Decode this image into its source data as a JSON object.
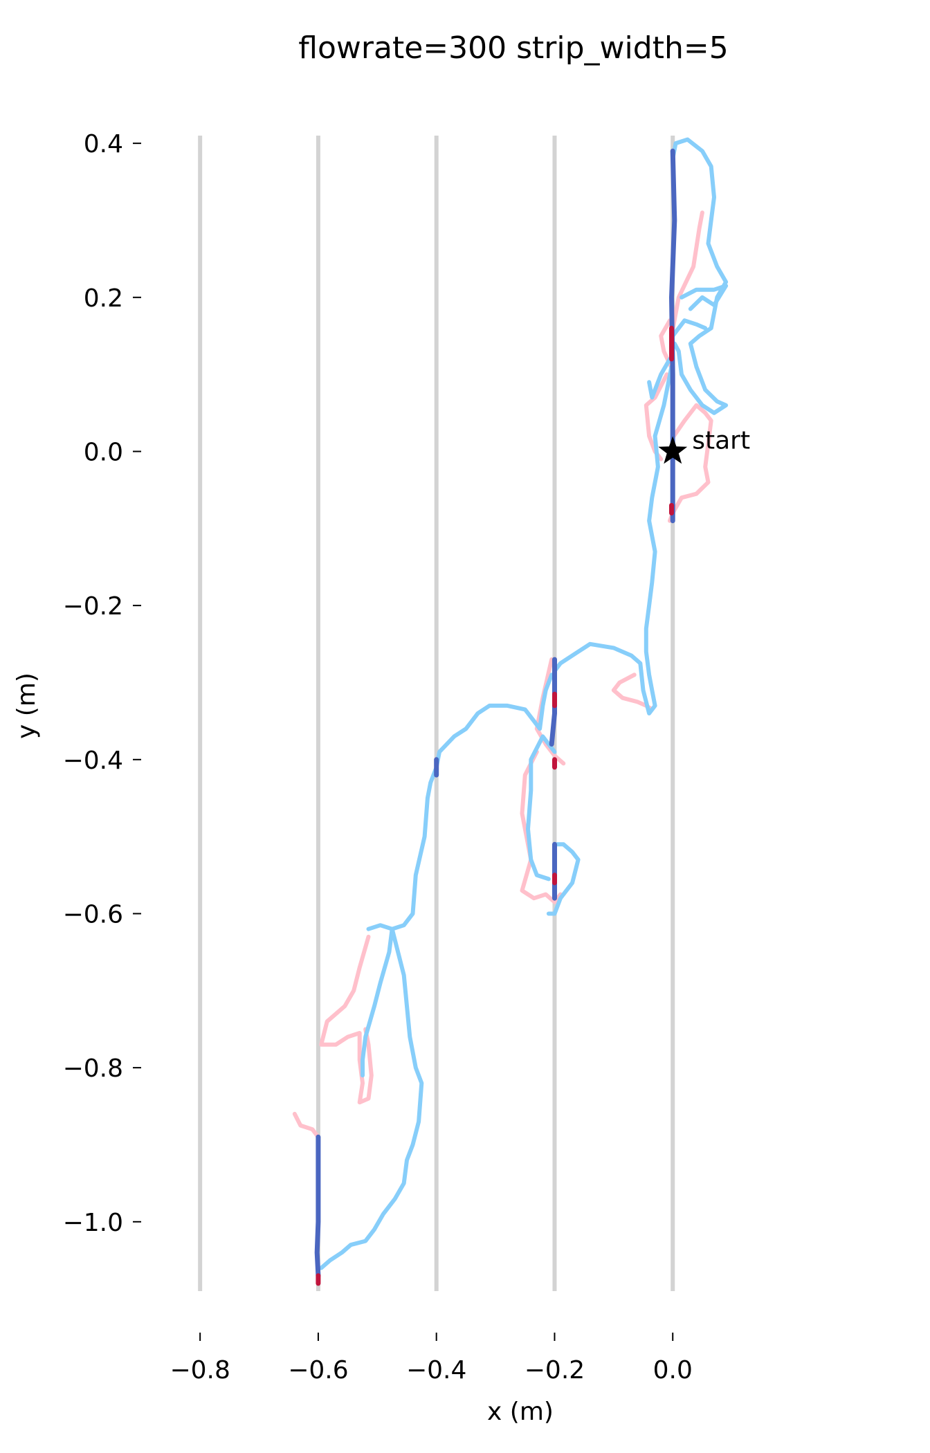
{
  "chart_data": {
    "type": "line",
    "title": "flowrate=300 strip_width=5",
    "xlabel": "x (m)",
    "ylabel": "y (m)",
    "xlim": [
      -0.84,
      0.2
    ],
    "ylim": [
      -1.09,
      0.41
    ],
    "xticks": [
      -0.8,
      -0.6,
      -0.4,
      -0.2,
      0.0
    ],
    "yticks": [
      0.4,
      0.2,
      0.0,
      -0.2,
      -0.4,
      -0.6,
      -0.8,
      -1.0
    ],
    "tick_labels_x": [
      "−0.8",
      "−0.6",
      "−0.4",
      "−0.2",
      "0.0"
    ],
    "tick_labels_y": [
      "0.4",
      "0.2",
      "0.0",
      "−0.2",
      "−0.4",
      "−0.6",
      "−0.8",
      "−1.0"
    ],
    "grid": false,
    "strips": [
      -0.8,
      -0.6,
      -0.4,
      -0.2,
      0.0
    ],
    "colors": {
      "strip": "#d3d3d3",
      "off_strip_upwind": "#87cefa",
      "off_strip_other": "#ffc0cb",
      "on_strip_upwind": "#4a66c0",
      "on_strip_other": "#c0143c"
    },
    "annotations": [
      {
        "text": "start",
        "x": 0.0,
        "y": 0.0,
        "marker": "star"
      }
    ],
    "series": [
      {
        "color_key": "off_strip_other",
        "points": [
          [
            -0.002,
            0.15
          ],
          [
            0.01,
            0.2
          ],
          [
            0.035,
            0.24
          ],
          [
            0.045,
            0.29
          ],
          [
            0.05,
            0.31
          ]
        ]
      },
      {
        "color_key": "off_strip_other",
        "points": [
          [
            0.002,
            0.02
          ],
          [
            0.02,
            0.04
          ],
          [
            0.04,
            0.06
          ],
          [
            0.055,
            0.05
          ],
          [
            0.065,
            0.04
          ],
          [
            0.06,
            0.01
          ],
          [
            0.055,
            -0.02
          ],
          [
            0.06,
            -0.04
          ],
          [
            0.04,
            -0.055
          ],
          [
            0.015,
            -0.06
          ],
          [
            0.0,
            -0.08
          ],
          [
            -0.005,
            -0.09
          ]
        ]
      },
      {
        "color_key": "off_strip_other",
        "points": [
          [
            -0.005,
            0.17
          ],
          [
            -0.02,
            0.15
          ],
          [
            -0.015,
            0.13
          ],
          [
            -0.003,
            0.11
          ]
        ]
      },
      {
        "color_key": "off_strip_other",
        "points": [
          [
            -0.01,
            0.1
          ],
          [
            -0.03,
            0.07
          ],
          [
            -0.045,
            0.06
          ],
          [
            -0.04,
            0.02
          ],
          [
            -0.03,
            0.0
          ],
          [
            -0.02,
            -0.01
          ]
        ]
      },
      {
        "color_key": "off_strip_other",
        "points": [
          [
            -0.205,
            -0.27
          ],
          [
            -0.22,
            -0.32
          ],
          [
            -0.23,
            -0.36
          ],
          [
            -0.215,
            -0.38
          ],
          [
            -0.2,
            -0.395
          ],
          [
            -0.185,
            -0.405
          ]
        ]
      },
      {
        "color_key": "off_strip_other",
        "points": [
          [
            -0.23,
            -0.39
          ],
          [
            -0.25,
            -0.42
          ],
          [
            -0.255,
            -0.47
          ],
          [
            -0.24,
            -0.53
          ],
          [
            -0.255,
            -0.57
          ],
          [
            -0.235,
            -0.58
          ],
          [
            -0.215,
            -0.575
          ],
          [
            -0.2,
            -0.585
          ],
          [
            -0.19,
            -0.575
          ]
        ]
      },
      {
        "color_key": "off_strip_other",
        "points": [
          [
            -0.065,
            -0.29
          ],
          [
            -0.09,
            -0.3
          ],
          [
            -0.1,
            -0.31
          ],
          [
            -0.085,
            -0.32
          ],
          [
            -0.06,
            -0.325
          ],
          [
            -0.045,
            -0.33
          ],
          [
            -0.035,
            -0.335
          ]
        ]
      },
      {
        "color_key": "off_strip_other",
        "points": [
          [
            -0.515,
            -0.63
          ],
          [
            -0.53,
            -0.67
          ],
          [
            -0.54,
            -0.7
          ],
          [
            -0.555,
            -0.72
          ],
          [
            -0.585,
            -0.74
          ],
          [
            -0.595,
            -0.77
          ],
          [
            -0.57,
            -0.77
          ],
          [
            -0.55,
            -0.76
          ],
          [
            -0.53,
            -0.755
          ],
          [
            -0.53,
            -0.79
          ],
          [
            -0.525,
            -0.82
          ],
          [
            -0.53,
            -0.845
          ],
          [
            -0.515,
            -0.84
          ],
          [
            -0.51,
            -0.81
          ],
          [
            -0.515,
            -0.77
          ],
          [
            -0.52,
            -0.75
          ]
        ]
      },
      {
        "color_key": "off_strip_other",
        "points": [
          [
            -0.6,
            -0.89
          ],
          [
            -0.61,
            -0.88
          ],
          [
            -0.63,
            -0.875
          ],
          [
            -0.64,
            -0.86
          ]
        ]
      },
      {
        "color_key": "off_strip_upwind",
        "points": [
          [
            0.0,
            0.38
          ],
          [
            0.005,
            0.4
          ],
          [
            0.025,
            0.405
          ],
          [
            0.05,
            0.39
          ],
          [
            0.065,
            0.37
          ],
          [
            0.07,
            0.33
          ],
          [
            0.065,
            0.3
          ],
          [
            0.06,
            0.27
          ],
          [
            0.075,
            0.24
          ],
          [
            0.09,
            0.22
          ],
          [
            0.075,
            0.2
          ],
          [
            0.065,
            0.16
          ],
          [
            0.045,
            0.15
          ],
          [
            0.03,
            0.14
          ],
          [
            0.04,
            0.11
          ],
          [
            0.055,
            0.08
          ],
          [
            0.075,
            0.065
          ],
          [
            0.09,
            0.06
          ],
          [
            0.07,
            0.05
          ],
          [
            0.05,
            0.06
          ],
          [
            0.03,
            0.08
          ],
          [
            0.015,
            0.1
          ],
          [
            0.01,
            0.13
          ],
          [
            0.003,
            0.14
          ]
        ]
      },
      {
        "color_key": "off_strip_upwind",
        "points": [
          [
            0.015,
            0.2
          ],
          [
            0.04,
            0.21
          ],
          [
            0.07,
            0.21
          ],
          [
            0.09,
            0.215
          ],
          [
            0.07,
            0.19
          ],
          [
            0.05,
            0.2
          ],
          [
            0.03,
            0.185
          ]
        ]
      },
      {
        "color_key": "off_strip_upwind",
        "points": [
          [
            0.0,
            0.15
          ],
          [
            0.02,
            0.17
          ],
          [
            0.04,
            0.165
          ],
          [
            0.055,
            0.16
          ]
        ]
      },
      {
        "color_key": "off_strip_upwind",
        "points": [
          [
            -0.002,
            0.11
          ],
          [
            -0.015,
            0.06
          ],
          [
            -0.03,
            0.02
          ],
          [
            -0.025,
            -0.02
          ],
          [
            -0.035,
            -0.06
          ],
          [
            -0.04,
            -0.09
          ],
          [
            -0.03,
            -0.13
          ],
          [
            -0.035,
            -0.17
          ],
          [
            -0.04,
            -0.2
          ],
          [
            -0.045,
            -0.23
          ],
          [
            -0.045,
            -0.26
          ],
          [
            -0.04,
            -0.29
          ],
          [
            -0.035,
            -0.31
          ],
          [
            -0.03,
            -0.33
          ],
          [
            -0.04,
            -0.34
          ],
          [
            -0.05,
            -0.31
          ],
          [
            -0.055,
            -0.275
          ],
          [
            -0.07,
            -0.265
          ],
          [
            -0.1,
            -0.255
          ],
          [
            -0.14,
            -0.25
          ],
          [
            -0.16,
            -0.26
          ],
          [
            -0.19,
            -0.275
          ],
          [
            -0.2,
            -0.285
          ]
        ]
      },
      {
        "color_key": "off_strip_upwind",
        "points": [
          [
            -0.005,
            0.12
          ],
          [
            -0.02,
            0.1
          ],
          [
            -0.035,
            0.07
          ],
          [
            -0.04,
            0.09
          ]
        ]
      },
      {
        "color_key": "off_strip_upwind",
        "points": [
          [
            -0.205,
            -0.29
          ],
          [
            -0.215,
            -0.31
          ],
          [
            -0.22,
            -0.33
          ],
          [
            -0.225,
            -0.36
          ],
          [
            -0.235,
            -0.35
          ],
          [
            -0.25,
            -0.335
          ],
          [
            -0.28,
            -0.33
          ],
          [
            -0.31,
            -0.33
          ],
          [
            -0.33,
            -0.34
          ],
          [
            -0.35,
            -0.36
          ],
          [
            -0.37,
            -0.37
          ],
          [
            -0.395,
            -0.39
          ],
          [
            -0.4,
            -0.41
          ],
          [
            -0.41,
            -0.43
          ],
          [
            -0.415,
            -0.45
          ],
          [
            -0.42,
            -0.5
          ],
          [
            -0.435,
            -0.55
          ],
          [
            -0.44,
            -0.6
          ],
          [
            -0.455,
            -0.615
          ],
          [
            -0.475,
            -0.62
          ],
          [
            -0.495,
            -0.615
          ],
          [
            -0.515,
            -0.62
          ]
        ]
      },
      {
        "color_key": "off_strip_upwind",
        "points": [
          [
            -0.475,
            -0.62
          ],
          [
            -0.465,
            -0.65
          ],
          [
            -0.455,
            -0.68
          ],
          [
            -0.45,
            -0.72
          ],
          [
            -0.445,
            -0.76
          ],
          [
            -0.435,
            -0.8
          ],
          [
            -0.425,
            -0.82
          ],
          [
            -0.43,
            -0.87
          ],
          [
            -0.44,
            -0.9
          ],
          [
            -0.45,
            -0.92
          ],
          [
            -0.455,
            -0.95
          ],
          [
            -0.47,
            -0.97
          ],
          [
            -0.49,
            -0.99
          ],
          [
            -0.505,
            -1.01
          ],
          [
            -0.52,
            -1.025
          ],
          [
            -0.545,
            -1.03
          ],
          [
            -0.56,
            -1.04
          ],
          [
            -0.58,
            -1.05
          ],
          [
            -0.595,
            -1.06
          ]
        ]
      },
      {
        "color_key": "off_strip_upwind",
        "points": [
          [
            -0.475,
            -0.62
          ],
          [
            -0.48,
            -0.65
          ],
          [
            -0.495,
            -0.69
          ],
          [
            -0.505,
            -0.72
          ],
          [
            -0.52,
            -0.76
          ],
          [
            -0.525,
            -0.79
          ],
          [
            -0.525,
            -0.81
          ]
        ]
      },
      {
        "color_key": "off_strip_upwind",
        "points": [
          [
            -0.2,
            -0.51
          ],
          [
            -0.185,
            -0.51
          ],
          [
            -0.17,
            -0.52
          ],
          [
            -0.16,
            -0.53
          ],
          [
            -0.17,
            -0.56
          ],
          [
            -0.19,
            -0.58
          ],
          [
            -0.2,
            -0.6
          ],
          [
            -0.21,
            -0.6
          ]
        ]
      },
      {
        "color_key": "off_strip_upwind",
        "points": [
          [
            -0.2,
            -0.39
          ],
          [
            -0.22,
            -0.37
          ],
          [
            -0.24,
            -0.4
          ],
          [
            -0.24,
            -0.44
          ],
          [
            -0.245,
            -0.49
          ],
          [
            -0.24,
            -0.53
          ],
          [
            -0.23,
            -0.55
          ],
          [
            -0.21,
            -0.555
          ]
        ]
      },
      {
        "color_key": "on_strip_upwind",
        "points": [
          [
            0.0,
            0.39
          ],
          [
            0.003,
            0.3
          ],
          [
            -0.002,
            0.2
          ],
          [
            0.0,
            0.1
          ],
          [
            0.0,
            0.0
          ],
          [
            0.0,
            -0.09
          ]
        ]
      },
      {
        "color_key": "on_strip_other",
        "points": [
          [
            -0.002,
            0.16
          ],
          [
            -0.002,
            0.12
          ]
        ]
      },
      {
        "color_key": "on_strip_other",
        "points": [
          [
            -0.002,
            -0.07
          ],
          [
            -0.002,
            -0.08
          ]
        ]
      },
      {
        "color_key": "on_strip_upwind",
        "points": [
          [
            -0.2,
            -0.27
          ],
          [
            -0.2,
            -0.3
          ],
          [
            -0.2,
            -0.34
          ],
          [
            -0.205,
            -0.38
          ]
        ]
      },
      {
        "color_key": "on_strip_other",
        "points": [
          [
            -0.2,
            -0.315
          ],
          [
            -0.2,
            -0.33
          ]
        ]
      },
      {
        "color_key": "on_strip_other",
        "points": [
          [
            -0.2,
            -0.4
          ],
          [
            -0.2,
            -0.41
          ]
        ]
      },
      {
        "color_key": "on_strip_upwind",
        "points": [
          [
            -0.4,
            -0.4
          ],
          [
            -0.4,
            -0.42
          ]
        ]
      },
      {
        "color_key": "on_strip_upwind",
        "points": [
          [
            -0.2,
            -0.51
          ],
          [
            -0.2,
            -0.54
          ],
          [
            -0.2,
            -0.58
          ]
        ]
      },
      {
        "color_key": "on_strip_other",
        "points": [
          [
            -0.2,
            -0.55
          ],
          [
            -0.2,
            -0.56
          ]
        ]
      },
      {
        "color_key": "on_strip_upwind",
        "points": [
          [
            -0.6,
            -0.89
          ],
          [
            -0.6,
            -0.95
          ],
          [
            -0.6,
            -1.0
          ],
          [
            -0.602,
            -1.04
          ],
          [
            -0.6,
            -1.07
          ]
        ]
      },
      {
        "color_key": "on_strip_other",
        "points": [
          [
            -0.6,
            -1.07
          ],
          [
            -0.6,
            -1.08
          ]
        ]
      }
    ]
  }
}
